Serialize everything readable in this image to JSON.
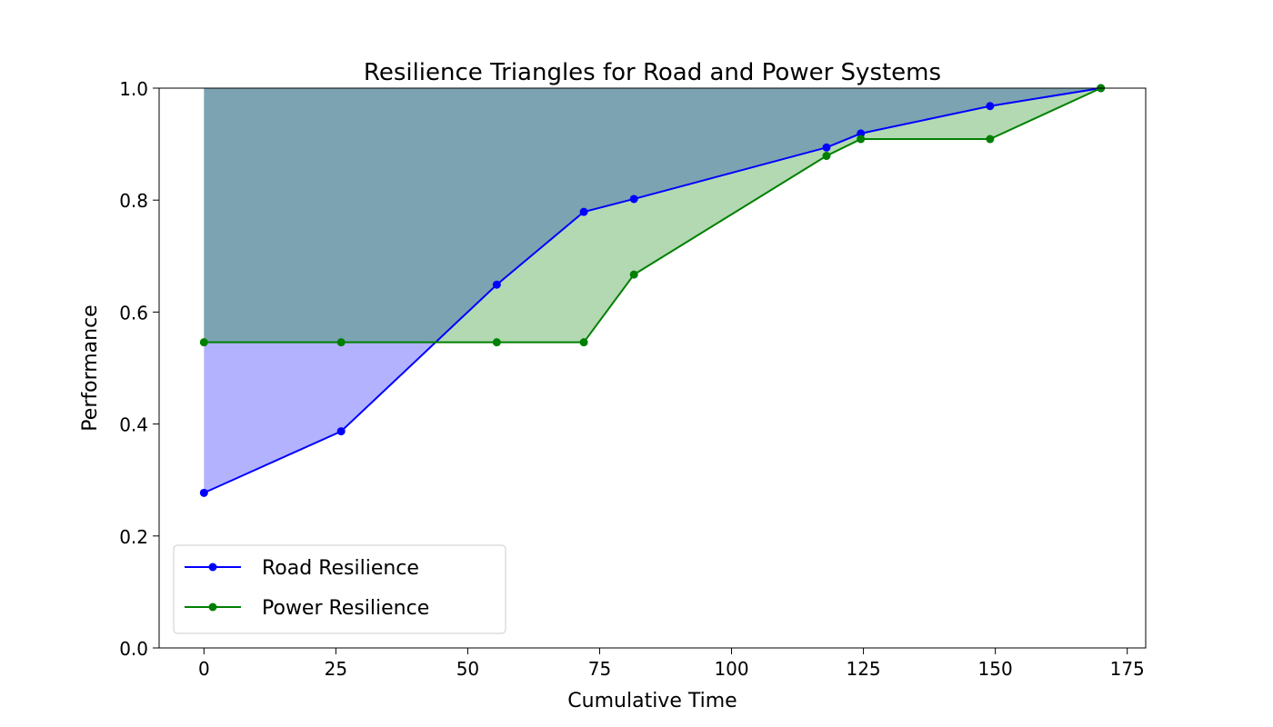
{
  "chart_data": {
    "type": "line",
    "title": "Resilience Triangles for Road and Power Systems",
    "xlabel": "Cumulative Time",
    "ylabel": "Performance",
    "xlim": [
      -8.5,
      178.5
    ],
    "ylim": [
      0,
      1.0
    ],
    "xticks": [
      0,
      25,
      50,
      75,
      100,
      125,
      150,
      175
    ],
    "xtick_labels": [
      "0",
      "25",
      "50",
      "75",
      "100",
      "125",
      "150",
      "175"
    ],
    "yticks": [
      0.0,
      0.2,
      0.4,
      0.6,
      0.8,
      1.0
    ],
    "ytick_labels": [
      "0.0",
      "0.2",
      "0.4",
      "0.6",
      "0.8",
      "1.0"
    ],
    "grid": false,
    "legend_placement": "lower-left",
    "series": [
      {
        "name": "Road Resilience",
        "color": "#0000ff",
        "fill_color": "#0000ff",
        "x": [
          0,
          26,
          55.5,
          72,
          81.5,
          118,
          124.5,
          149,
          170
        ],
        "y": [
          0.277,
          0.387,
          0.649,
          0.779,
          0.802,
          0.894,
          0.919,
          0.968,
          1.0
        ]
      },
      {
        "name": "Power Resilience",
        "color": "#008000",
        "fill_color": "#008000",
        "x": [
          0,
          26,
          55.5,
          72,
          81.5,
          118,
          124.5,
          149,
          170
        ],
        "y": [
          0.546,
          0.546,
          0.546,
          0.546,
          0.667,
          0.879,
          0.909,
          0.909,
          1.0
        ]
      }
    ]
  }
}
